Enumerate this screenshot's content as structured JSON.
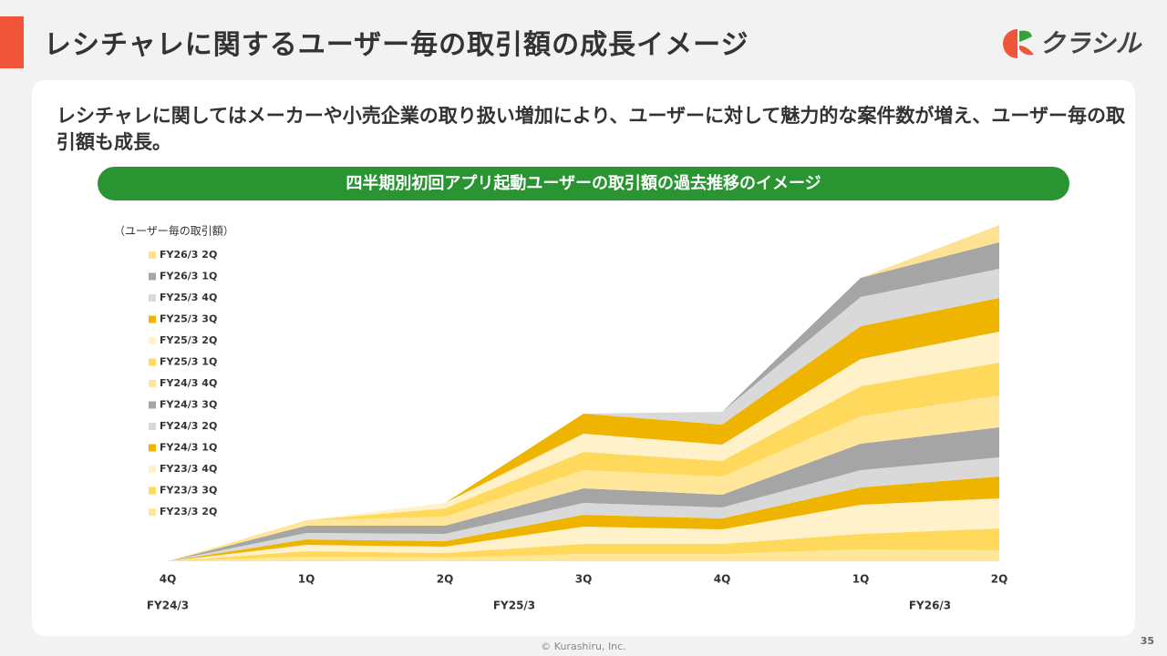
{
  "header": {
    "title": "レシチャレに関するユーザー毎の取引額の成長イメージ",
    "logo": "クラシル"
  },
  "body": {
    "text": "レシチャレに関してはメーカーや小売企業の取り扱い増加により、ユーザーに対して魅力的な案件数が増え、ユーザー毎の取引額も成長。"
  },
  "chart_data": {
    "type": "stacked_area",
    "title": "四半期別初回アプリ起動ユーザーの取引額の過去推移のイメージ",
    "y_label": "（ユーザー毎の取引額）",
    "categories": [
      "4Q",
      "1Q",
      "2Q",
      "3Q",
      "4Q",
      "1Q",
      "2Q"
    ],
    "x_groups": [
      "FY24/3",
      "FY25/3",
      "FY26/3"
    ],
    "ylim": [
      0,
      369
    ],
    "series": [
      {
        "name": "FY26/3 2Q",
        "color": "#fde293",
        "values": [
          0,
          0,
          0,
          0,
          0,
          0,
          19
        ]
      },
      {
        "name": "FY26/3 1Q",
        "color": "#a5a5a5",
        "values": [
          0,
          0,
          0,
          0,
          0,
          21,
          29
        ]
      },
      {
        "name": "FY25/3 4Q",
        "color": "#d9d9d9",
        "values": [
          0,
          0,
          0,
          0,
          14,
          32,
          32
        ]
      },
      {
        "name": "FY25/3 3Q",
        "color": "#efb400",
        "values": [
          0,
          0,
          0,
          22,
          22,
          36,
          37
        ]
      },
      {
        "name": "FY25/3 2Q",
        "color": "#fff1c9",
        "values": [
          0,
          0,
          6,
          20,
          18,
          30,
          34
        ]
      },
      {
        "name": "FY25/3 1Q",
        "color": "#ffd95c",
        "values": [
          0,
          0,
          9,
          20,
          17,
          33,
          36
        ]
      },
      {
        "name": "FY24/3 4Q",
        "color": "#ffe699",
        "values": [
          0,
          6,
          10,
          20,
          20,
          30,
          35
        ]
      },
      {
        "name": "FY24/3 3Q",
        "color": "#a5a5a5",
        "values": [
          0,
          8,
          9,
          16,
          14,
          29,
          33
        ]
      },
      {
        "name": "FY24/3 2Q",
        "color": "#d9d9d9",
        "values": [
          0,
          7,
          8,
          13,
          12,
          19,
          21
        ]
      },
      {
        "name": "FY24/3 1Q",
        "color": "#efb400",
        "values": [
          0,
          6,
          6,
          13,
          12,
          19,
          24
        ]
      },
      {
        "name": "FY23/3 4Q",
        "color": "#fff1c9",
        "values": [
          0,
          7,
          7,
          19,
          16,
          32,
          33
        ]
      },
      {
        "name": "FY23/3 3Q",
        "color": "#ffd95c",
        "values": [
          0,
          6,
          5,
          11,
          11,
          17,
          24
        ]
      },
      {
        "name": "FY23/3 2Q",
        "color": "#ffe699",
        "values": [
          0,
          5,
          4,
          8,
          8,
          13,
          12
        ]
      }
    ]
  },
  "footer": {
    "copyright": "© Kurashiru, Inc.",
    "page": "35"
  }
}
